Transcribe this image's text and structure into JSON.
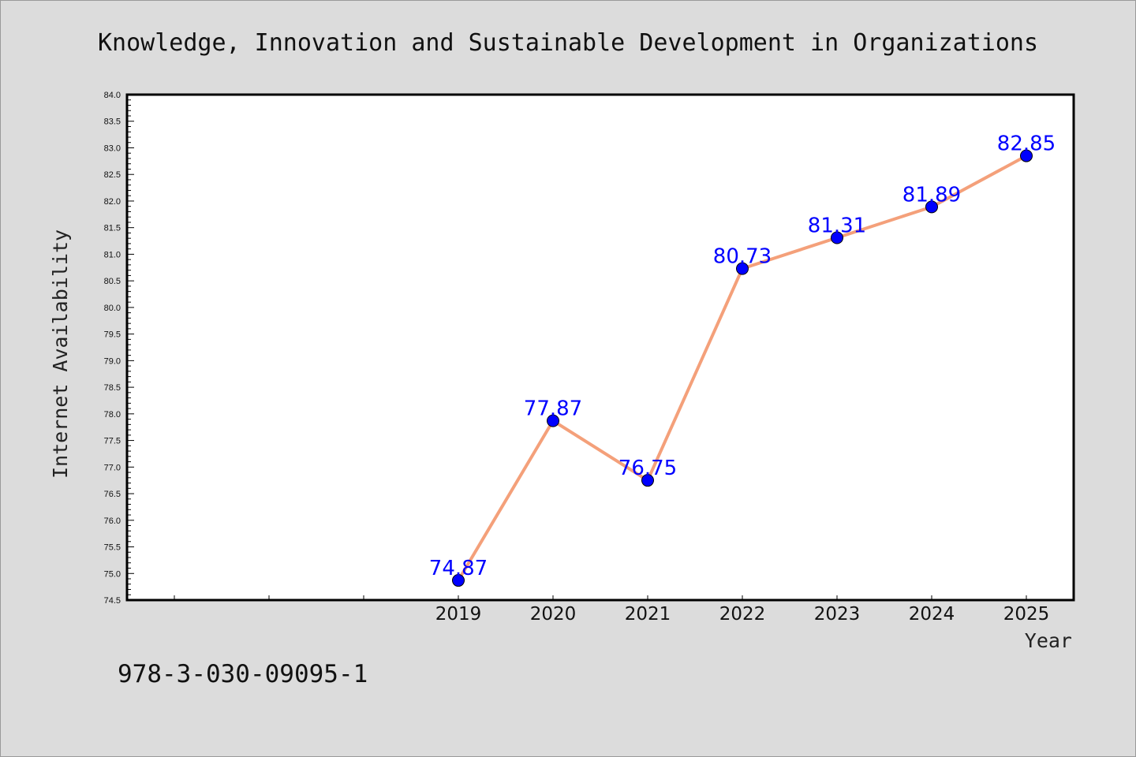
{
  "figure": {
    "background": "#dcdcdc",
    "plot_background": "#ffffff",
    "footer": "978-3-030-09095-1"
  },
  "chart_data": {
    "type": "line",
    "title": "Knowledge, Innovation and Sustainable Development in Organizations",
    "xlabel": "Year",
    "ylabel": "Internet Availability",
    "x": [
      2019,
      2020,
      2021,
      2022,
      2023,
      2024,
      2025
    ],
    "series": [
      {
        "values": [
          74.87,
          77.87,
          76.75,
          80.73,
          81.31,
          81.89,
          82.85
        ],
        "line_color": "#f4a07a",
        "marker_color": "#0000ff"
      }
    ],
    "data_labels": [
      "74.87",
      "77.87",
      "76.75",
      "80.73",
      "81.31",
      "81.89",
      "82.85"
    ],
    "xlim": [
      2015.5,
      2025.5
    ],
    "ylim": [
      74.5,
      84.0
    ],
    "yticks": [
      "74.5",
      "75.0",
      "75.5",
      "76.0",
      "76.5",
      "77.0",
      "77.5",
      "78.0",
      "78.5",
      "79.0",
      "79.5",
      "80.0",
      "80.5",
      "81.0",
      "81.5",
      "82.0",
      "82.5",
      "83.0",
      "83.5",
      "84.0"
    ],
    "xticks": [
      "2019",
      "2020",
      "2021",
      "2022",
      "2023",
      "2024",
      "2025"
    ],
    "grid": false,
    "legend": false
  }
}
